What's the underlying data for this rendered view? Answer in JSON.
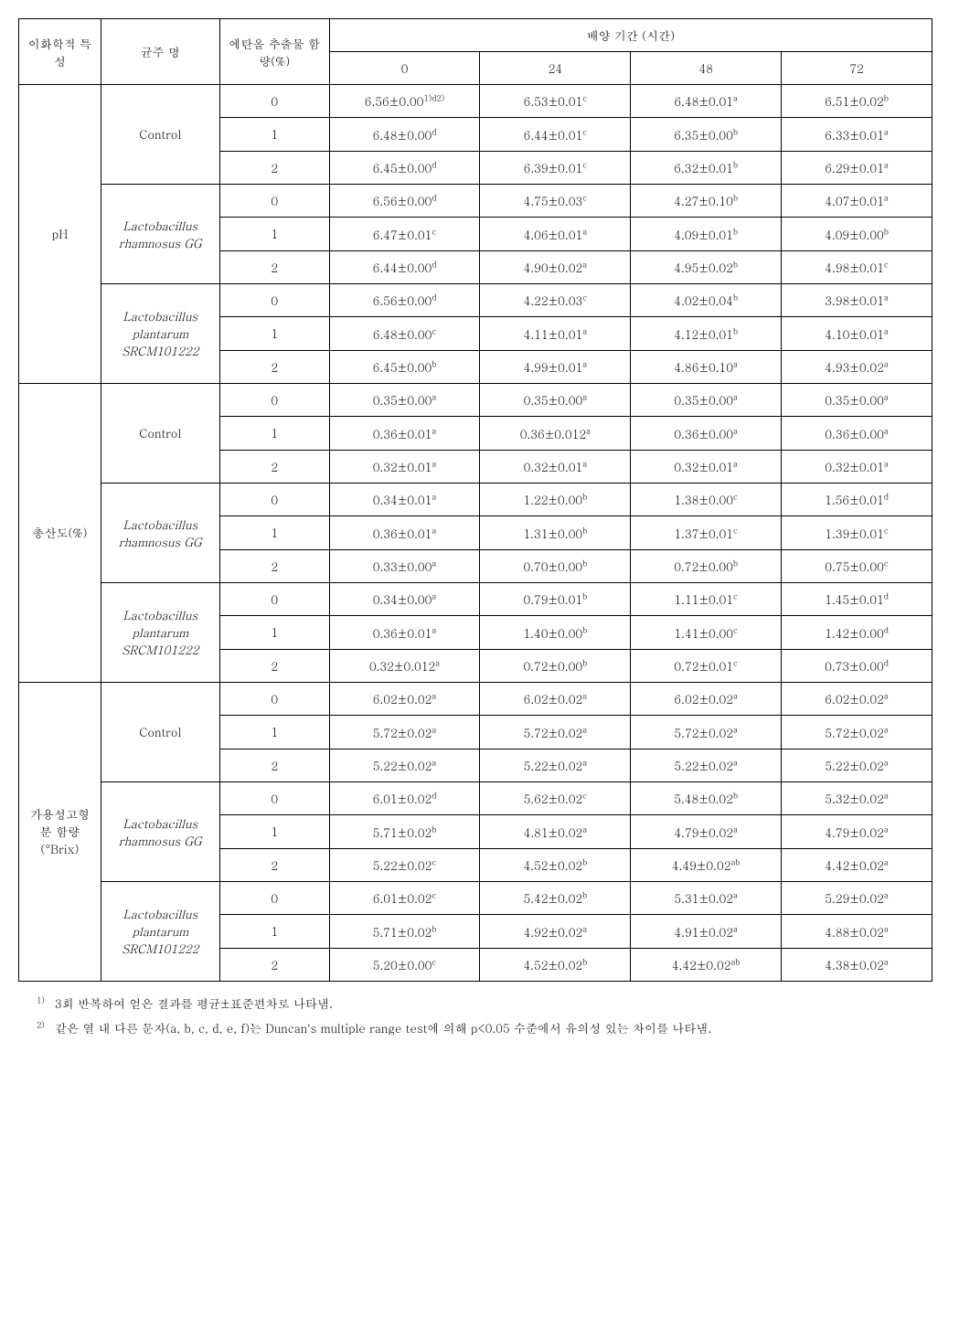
{
  "headers": {
    "col1": "이화학적 특성",
    "col2": "균주 명",
    "col3": "에탄올 추출물 함량(%)",
    "col4_group": "배양 기간 (시간)",
    "time_cols": [
      "0",
      "24",
      "48",
      "72"
    ]
  },
  "property_labels": [
    "pH",
    "총산도(%)",
    "가용성고형분 함량(°Brix)"
  ],
  "strain_labels": {
    "control": "Control",
    "lgg_line1": "Lactobacillus",
    "lgg_line2": "rhamnosus GG",
    "lpl_line1": "Lactobacillus",
    "lpl_line2": "plantarum",
    "lpl_line3": "SRCM101222"
  },
  "conc_levels": [
    "0",
    "1",
    "2"
  ],
  "cells": {
    "pH": {
      "control": [
        [
          {
            "v": "6.56±0.00",
            "s": "1)d2)"
          },
          {
            "v": "6.53±0.01",
            "s": "c"
          },
          {
            "v": "6.48±0.01",
            "s": "a"
          },
          {
            "v": "6.51±0.02",
            "s": "b"
          }
        ],
        [
          {
            "v": "6.48±0.00",
            "s": "d"
          },
          {
            "v": "6.44±0.01",
            "s": "c"
          },
          {
            "v": "6.35±0.00",
            "s": "b"
          },
          {
            "v": "6.33±0.01",
            "s": "a"
          }
        ],
        [
          {
            "v": "6.45±0.00",
            "s": "d"
          },
          {
            "v": "6.39±0.01",
            "s": "c"
          },
          {
            "v": "6.32±0.01",
            "s": "b"
          },
          {
            "v": "6.29±0.01",
            "s": "a"
          }
        ]
      ],
      "lgg": [
        [
          {
            "v": "6.56±0.00",
            "s": "d"
          },
          {
            "v": "4.75±0.03",
            "s": "c"
          },
          {
            "v": "4.27±0.10",
            "s": "b"
          },
          {
            "v": "4.07±0.01",
            "s": "a"
          }
        ],
        [
          {
            "v": "6.47±0.01",
            "s": "c"
          },
          {
            "v": "4.06±0.01",
            "s": "a"
          },
          {
            "v": "4.09±0.01",
            "s": "b"
          },
          {
            "v": "4.09±0.00",
            "s": "b"
          }
        ],
        [
          {
            "v": "6.44±0.00",
            "s": "d"
          },
          {
            "v": "4.90±0.02",
            "s": "a"
          },
          {
            "v": "4.95±0.02",
            "s": "b"
          },
          {
            "v": "4.98±0.01",
            "s": "c"
          }
        ]
      ],
      "lpl": [
        [
          {
            "v": "6.56±0.00",
            "s": "d"
          },
          {
            "v": "4.22±0.03",
            "s": "c"
          },
          {
            "v": "4.02±0.04",
            "s": "b"
          },
          {
            "v": "3.98±0.01",
            "s": "a"
          }
        ],
        [
          {
            "v": "6.48±0.00",
            "s": "c"
          },
          {
            "v": "4.11±0.01",
            "s": "a"
          },
          {
            "v": "4.12±0.01",
            "s": "b"
          },
          {
            "v": "4.10±0.01",
            "s": "a"
          }
        ],
        [
          {
            "v": "6.45±0.00",
            "s": "b"
          },
          {
            "v": "4.99±0.01",
            "s": "a"
          },
          {
            "v": "4.86±0.10",
            "s": "a"
          },
          {
            "v": "4.93±0.02",
            "s": "a"
          }
        ]
      ]
    },
    "acidity": {
      "control": [
        [
          {
            "v": "0.35±0.00",
            "s": "a"
          },
          {
            "v": "0.35±0.00",
            "s": "a"
          },
          {
            "v": "0.35±0.00",
            "s": "a"
          },
          {
            "v": "0.35±0.00",
            "s": "a"
          }
        ],
        [
          {
            "v": "0.36±0.01",
            "s": "a"
          },
          {
            "v": "0.36±0.012",
            "s": "a"
          },
          {
            "v": "0.36±0.00",
            "s": "a"
          },
          {
            "v": "0.36±0.00",
            "s": "a"
          }
        ],
        [
          {
            "v": "0.32±0.01",
            "s": "a"
          },
          {
            "v": "0.32±0.01",
            "s": "a"
          },
          {
            "v": "0.32±0.01",
            "s": "a"
          },
          {
            "v": "0.32±0.01",
            "s": "a"
          }
        ]
      ],
      "lgg": [
        [
          {
            "v": "0.34±0.01",
            "s": "a"
          },
          {
            "v": "1.22±0.00",
            "s": "b"
          },
          {
            "v": "1.38±0.00",
            "s": "c"
          },
          {
            "v": "1.56±0.01",
            "s": "d"
          }
        ],
        [
          {
            "v": "0.36±0.01",
            "s": "a"
          },
          {
            "v": "1.31±0.00",
            "s": "b"
          },
          {
            "v": "1.37±0.01",
            "s": "c"
          },
          {
            "v": "1.39±0.01",
            "s": "c"
          }
        ],
        [
          {
            "v": "0.33±0.00",
            "s": "a"
          },
          {
            "v": "0.70±0.00",
            "s": "b"
          },
          {
            "v": "0.72±0.00",
            "s": "b"
          },
          {
            "v": "0.75±0.00",
            "s": "c"
          }
        ]
      ],
      "lpl": [
        [
          {
            "v": "0.34±0.00",
            "s": "a"
          },
          {
            "v": "0.79±0.01",
            "s": "b"
          },
          {
            "v": "1.11±0.01",
            "s": "c"
          },
          {
            "v": "1.45±0.01",
            "s": "d"
          }
        ],
        [
          {
            "v": "0.36±0.01",
            "s": "a"
          },
          {
            "v": "1.40±0.00",
            "s": "b"
          },
          {
            "v": "1.41±0.00",
            "s": "c"
          },
          {
            "v": "1.42±0.00",
            "s": "d"
          }
        ],
        [
          {
            "v": "0.32±0.012",
            "s": "a"
          },
          {
            "v": "0.72±0.00",
            "s": "b"
          },
          {
            "v": "0.72±0.01",
            "s": "c"
          },
          {
            "v": "0.73±0.00",
            "s": "d"
          }
        ]
      ]
    },
    "brix": {
      "control": [
        [
          {
            "v": "6.02±0.02",
            "s": "a"
          },
          {
            "v": "6.02±0.02",
            "s": "a"
          },
          {
            "v": "6.02±0.02",
            "s": "a"
          },
          {
            "v": "6.02±0.02",
            "s": "a"
          }
        ],
        [
          {
            "v": "5.72±0.02",
            "s": "a"
          },
          {
            "v": "5.72±0.02",
            "s": "a"
          },
          {
            "v": "5.72±0.02",
            "s": "a"
          },
          {
            "v": "5.72±0.02",
            "s": "a"
          }
        ],
        [
          {
            "v": "5.22±0.02",
            "s": "a"
          },
          {
            "v": "5.22±0.02",
            "s": "a"
          },
          {
            "v": "5.22±0.02",
            "s": "a"
          },
          {
            "v": "5.22±0.02",
            "s": "a"
          }
        ]
      ],
      "lgg": [
        [
          {
            "v": "6.01±0.02",
            "s": "d"
          },
          {
            "v": "5.62±0.02",
            "s": "c"
          },
          {
            "v": "5.48±0.02",
            "s": "b"
          },
          {
            "v": "5.32±0.02",
            "s": "a"
          }
        ],
        [
          {
            "v": "5.71±0.02",
            "s": "b"
          },
          {
            "v": "4.81±0.02",
            "s": "a"
          },
          {
            "v": "4.79±0.02",
            "s": "a"
          },
          {
            "v": "4.79±0.02",
            "s": "a"
          }
        ],
        [
          {
            "v": "5.22±0.02",
            "s": "c"
          },
          {
            "v": "4.52±0.02",
            "s": "b"
          },
          {
            "v": "4.49±0.02",
            "s": "ab"
          },
          {
            "v": "4.42±0.02",
            "s": "a"
          }
        ]
      ],
      "lpl": [
        [
          {
            "v": "6.01±0.02",
            "s": "c"
          },
          {
            "v": "5.42±0.02",
            "s": "b"
          },
          {
            "v": "5.31±0.02",
            "s": "a"
          },
          {
            "v": "5.29±0.02",
            "s": "a"
          }
        ],
        [
          {
            "v": "5.71±0.02",
            "s": "b"
          },
          {
            "v": "4.92±0.02",
            "s": "a"
          },
          {
            "v": "4.91±0.02",
            "s": "a"
          },
          {
            "v": "4.88±0.02",
            "s": "a"
          }
        ],
        [
          {
            "v": "5.20±0.00",
            "s": "c"
          },
          {
            "v": "4.52±0.02",
            "s": "b"
          },
          {
            "v": "4.42±0.02",
            "s": "ab"
          },
          {
            "v": "4.38±0.02",
            "s": "a"
          }
        ]
      ]
    }
  },
  "footnotes": {
    "n1_sup": "1)",
    "n1_text": "3회 반복하여 얻은 결과를 평균±표준편차로 나타냄.",
    "n2_sup": "2)",
    "n2_text": "같은 열 내 다른 문자(a, b, c, d, e, f)는 Duncan's multiple range test에 의해 p<0.05 수준에서 유의성 있는 차이를 나타냄."
  }
}
